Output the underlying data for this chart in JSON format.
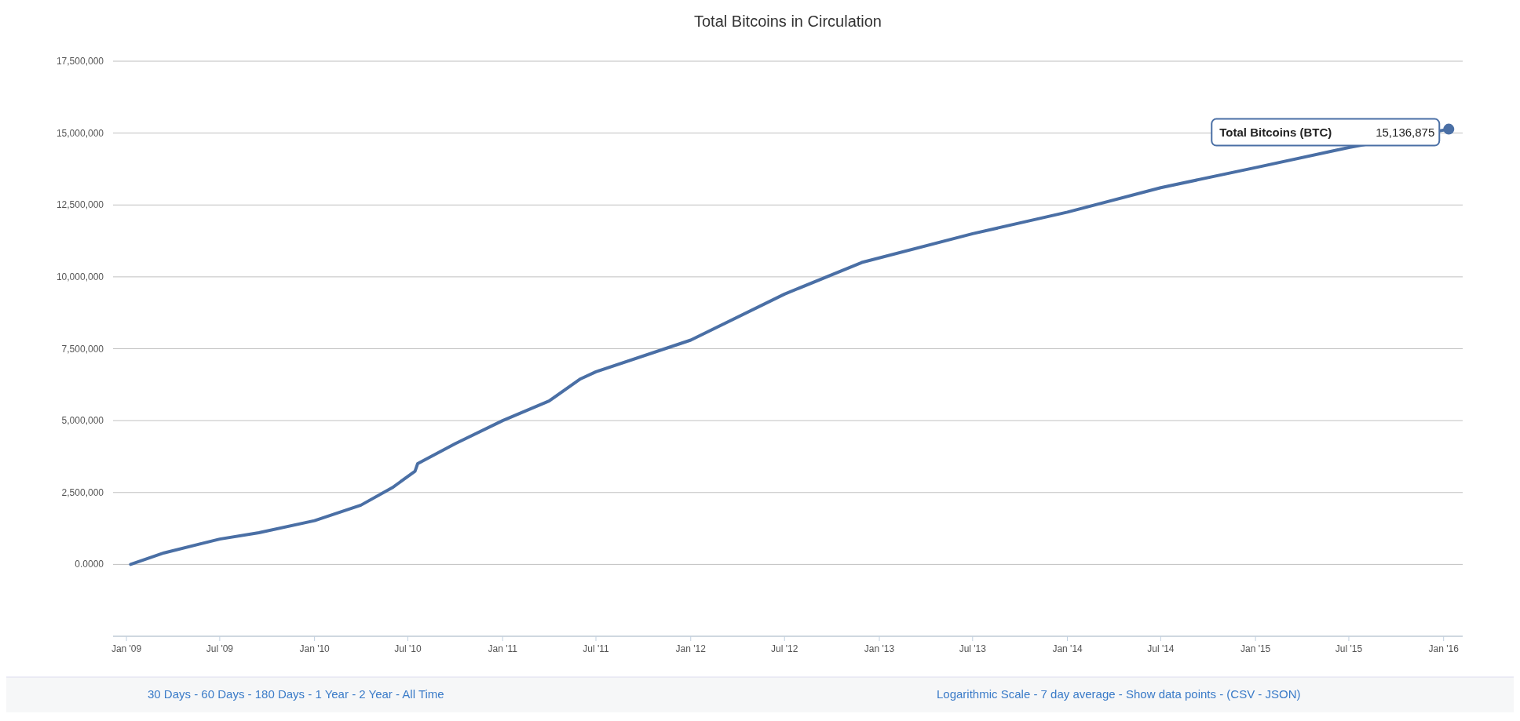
{
  "chart_data": {
    "type": "line",
    "title": "Total Bitcoins in Circulation",
    "x": [
      "2009-01-09",
      "2009-03-15",
      "2009-07-01",
      "2009-09-15",
      "2010-01-01",
      "2010-04-01",
      "2010-06-01",
      "2010-07-15",
      "2010-07-20",
      "2010-10-01",
      "2011-01-01",
      "2011-04-01",
      "2011-06-01",
      "2011-07-01",
      "2012-01-01",
      "2012-07-01",
      "2012-11-28",
      "2013-07-01",
      "2014-01-01",
      "2014-07-01",
      "2015-01-01",
      "2015-07-01",
      "2016-01-11"
    ],
    "series": [
      {
        "name": "Total Bitcoins (BTC)",
        "color": "#4a6fa5",
        "values": [
          0,
          400000,
          880000,
          1100000,
          1520000,
          2060000,
          2670000,
          3240000,
          3500000,
          4200000,
          5000000,
          5680000,
          6450000,
          6700000,
          7800000,
          9400000,
          10500000,
          11500000,
          12250000,
          13100000,
          13800000,
          14500000,
          15136875
        ],
        "value_labels": [
          null,
          null,
          null,
          null,
          null,
          null,
          null,
          null,
          null,
          null,
          null,
          null,
          null,
          null,
          null,
          null,
          null,
          null,
          null,
          null,
          null,
          null,
          "15,136,875"
        ]
      }
    ],
    "xlim": [
      "2008-12-06",
      "2016-02-07"
    ],
    "xticks": [
      {
        "value": "2009-01-01",
        "label": "Jan '09"
      },
      {
        "value": "2009-07-01",
        "label": "Jul '09"
      },
      {
        "value": "2010-01-01",
        "label": "Jan '10"
      },
      {
        "value": "2010-07-01",
        "label": "Jul '10"
      },
      {
        "value": "2011-01-01",
        "label": "Jan '11"
      },
      {
        "value": "2011-07-01",
        "label": "Jul '11"
      },
      {
        "value": "2012-01-01",
        "label": "Jan '12"
      },
      {
        "value": "2012-07-01",
        "label": "Jul '12"
      },
      {
        "value": "2013-01-01",
        "label": "Jan '13"
      },
      {
        "value": "2013-07-01",
        "label": "Jul '13"
      },
      {
        "value": "2014-01-01",
        "label": "Jan '14"
      },
      {
        "value": "2014-07-01",
        "label": "Jul '14"
      },
      {
        "value": "2015-01-01",
        "label": "Jan '15"
      },
      {
        "value": "2015-07-01",
        "label": "Jul '15"
      },
      {
        "value": "2016-01-01",
        "label": "Jan '16"
      }
    ],
    "ylim": [
      -2500000,
      17500000
    ],
    "yticks": [
      {
        "value": -2500000,
        "label": null
      },
      {
        "value": 0,
        "label": "0.0000"
      },
      {
        "value": 2500000,
        "label": "2,500,000"
      },
      {
        "value": 5000000,
        "label": "5,000,000"
      },
      {
        "value": 7500000,
        "label": "7,500,000"
      },
      {
        "value": 10000000,
        "label": "10,000,000"
      },
      {
        "value": 12500000,
        "label": "12,500,000"
      },
      {
        "value": 15000000,
        "label": "15,000,000"
      },
      {
        "value": 17500000,
        "label": "17,500,000"
      }
    ],
    "grid": "y",
    "legend": false,
    "marker": "none",
    "line_style": "solid",
    "annotations": [
      "30 Days - 60 Days - 180 Days - 1 Year - 2 Year - All Time",
      "Logarithmic Scale - 7 day average - Show data points - (CSV - JSON)"
    ]
  }
}
